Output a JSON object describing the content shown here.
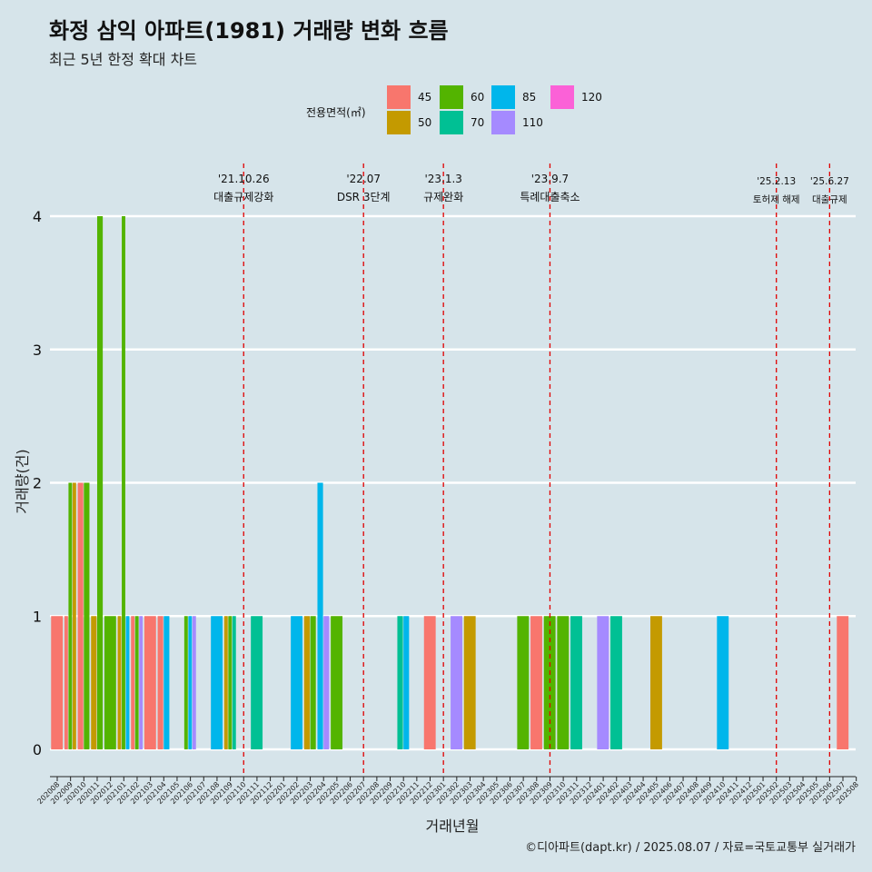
{
  "title": "화정 삼익 아파트(1981) 거래량 변화 흐름",
  "subtitle": "최근 5년 한정 확대 차트",
  "caption": "©디아파트(dapt.kr) / 2025.08.07 / 자료=국토교통부 실거래가",
  "colors": {
    "45": "#f8766d",
    "50": "#c49a00",
    "60": "#53b400",
    "70": "#00c094",
    "85": "#00b6eb",
    "110": "#a58aff",
    "120": "#fb61d7"
  },
  "chart_data": {
    "type": "bar",
    "xlabel": "거래년월",
    "ylabel": "거래량(건)",
    "ylim": [
      0,
      4
    ],
    "yticks": [
      0,
      1,
      2,
      3,
      4
    ],
    "legend": {
      "title": "전용면적(㎡)",
      "position": "top",
      "entries": [
        "45",
        "50",
        "60",
        "70",
        "85",
        "110",
        "120"
      ]
    },
    "categories": [
      "202008",
      "202009",
      "202010",
      "202011",
      "202012",
      "202101",
      "202102",
      "202103",
      "202104",
      "202105",
      "202106",
      "202107",
      "202108",
      "202109",
      "202110",
      "202111",
      "202112",
      "202201",
      "202202",
      "202203",
      "202204",
      "202205",
      "202206",
      "202207",
      "202208",
      "202209",
      "202210",
      "202211",
      "202212",
      "202301",
      "202302",
      "202303",
      "202304",
      "202305",
      "202306",
      "202307",
      "202308",
      "202309",
      "202310",
      "202311",
      "202312",
      "202401",
      "202402",
      "202403",
      "202404",
      "202405",
      "202406",
      "202407",
      "202408",
      "202409",
      "202410",
      "202411",
      "202412",
      "202501",
      "202502",
      "202503",
      "202504",
      "202505",
      "202506",
      "202507",
      "202508"
    ],
    "bars": [
      {
        "month": "202008",
        "area": "45",
        "value": 1
      },
      {
        "month": "202009",
        "area": "45",
        "value": 1
      },
      {
        "month": "202009",
        "area": "60",
        "value": 2
      },
      {
        "month": "202009",
        "area": "50",
        "value": 2
      },
      {
        "month": "202010",
        "area": "45",
        "value": 2
      },
      {
        "month": "202010",
        "area": "60",
        "value": 2
      },
      {
        "month": "202011",
        "area": "50",
        "value": 1
      },
      {
        "month": "202011",
        "area": "60",
        "value": 4
      },
      {
        "month": "202012",
        "area": "60",
        "value": 1
      },
      {
        "month": "202101",
        "area": "50",
        "value": 1
      },
      {
        "month": "202101",
        "area": "60",
        "value": 4
      },
      {
        "month": "202101",
        "area": "85",
        "value": 1
      },
      {
        "month": "202102",
        "area": "45",
        "value": 1
      },
      {
        "month": "202102",
        "area": "60",
        "value": 1
      },
      {
        "month": "202102",
        "area": "110",
        "value": 1
      },
      {
        "month": "202103",
        "area": "45",
        "value": 1
      },
      {
        "month": "202104",
        "area": "45",
        "value": 1
      },
      {
        "month": "202104",
        "area": "85",
        "value": 1
      },
      {
        "month": "202106",
        "area": "60",
        "value": 1
      },
      {
        "month": "202106",
        "area": "85",
        "value": 1
      },
      {
        "month": "202106",
        "area": "110",
        "value": 1
      },
      {
        "month": "202108",
        "area": "85",
        "value": 1
      },
      {
        "month": "202109",
        "area": "50",
        "value": 1
      },
      {
        "month": "202109",
        "area": "60",
        "value": 1
      },
      {
        "month": "202109",
        "area": "70",
        "value": 1
      },
      {
        "month": "202111",
        "area": "70",
        "value": 1
      },
      {
        "month": "202202",
        "area": "85",
        "value": 1
      },
      {
        "month": "202203",
        "area": "50",
        "value": 1
      },
      {
        "month": "202203",
        "area": "60",
        "value": 1
      },
      {
        "month": "202204",
        "area": "85",
        "value": 2
      },
      {
        "month": "202204",
        "area": "110",
        "value": 1
      },
      {
        "month": "202205",
        "area": "60",
        "value": 1
      },
      {
        "month": "202210",
        "area": "70",
        "value": 1
      },
      {
        "month": "202210",
        "area": "85",
        "value": 1
      },
      {
        "month": "202212",
        "area": "45",
        "value": 1
      },
      {
        "month": "202302",
        "area": "110",
        "value": 1
      },
      {
        "month": "202303",
        "area": "50",
        "value": 1
      },
      {
        "month": "202307",
        "area": "60",
        "value": 1
      },
      {
        "month": "202308",
        "area": "45",
        "value": 1
      },
      {
        "month": "202309",
        "area": "60",
        "value": 1
      },
      {
        "month": "202310",
        "area": "60",
        "value": 1
      },
      {
        "month": "202311",
        "area": "70",
        "value": 1
      },
      {
        "month": "202401",
        "area": "110",
        "value": 1
      },
      {
        "month": "202402",
        "area": "70",
        "value": 1
      },
      {
        "month": "202405",
        "area": "50",
        "value": 1
      },
      {
        "month": "202410",
        "area": "85",
        "value": 1
      },
      {
        "month": "202507",
        "area": "45",
        "value": 1
      }
    ],
    "annotations": [
      {
        "month": "202110",
        "date": "'21.10.26",
        "label": "대출규제강화"
      },
      {
        "month": "202207",
        "date": "'22.07",
        "label": "DSR 3단계"
      },
      {
        "month": "202301",
        "date": "'23.1.3",
        "label": "규제완화"
      },
      {
        "month": "202309",
        "date": "'23.9.7",
        "label": "특례대출축소"
      },
      {
        "month": "202502",
        "date": "'25.2.13",
        "label": "토허제 해제"
      },
      {
        "month": "202506",
        "date": "'25.6.27",
        "label": "대출규제"
      }
    ]
  }
}
